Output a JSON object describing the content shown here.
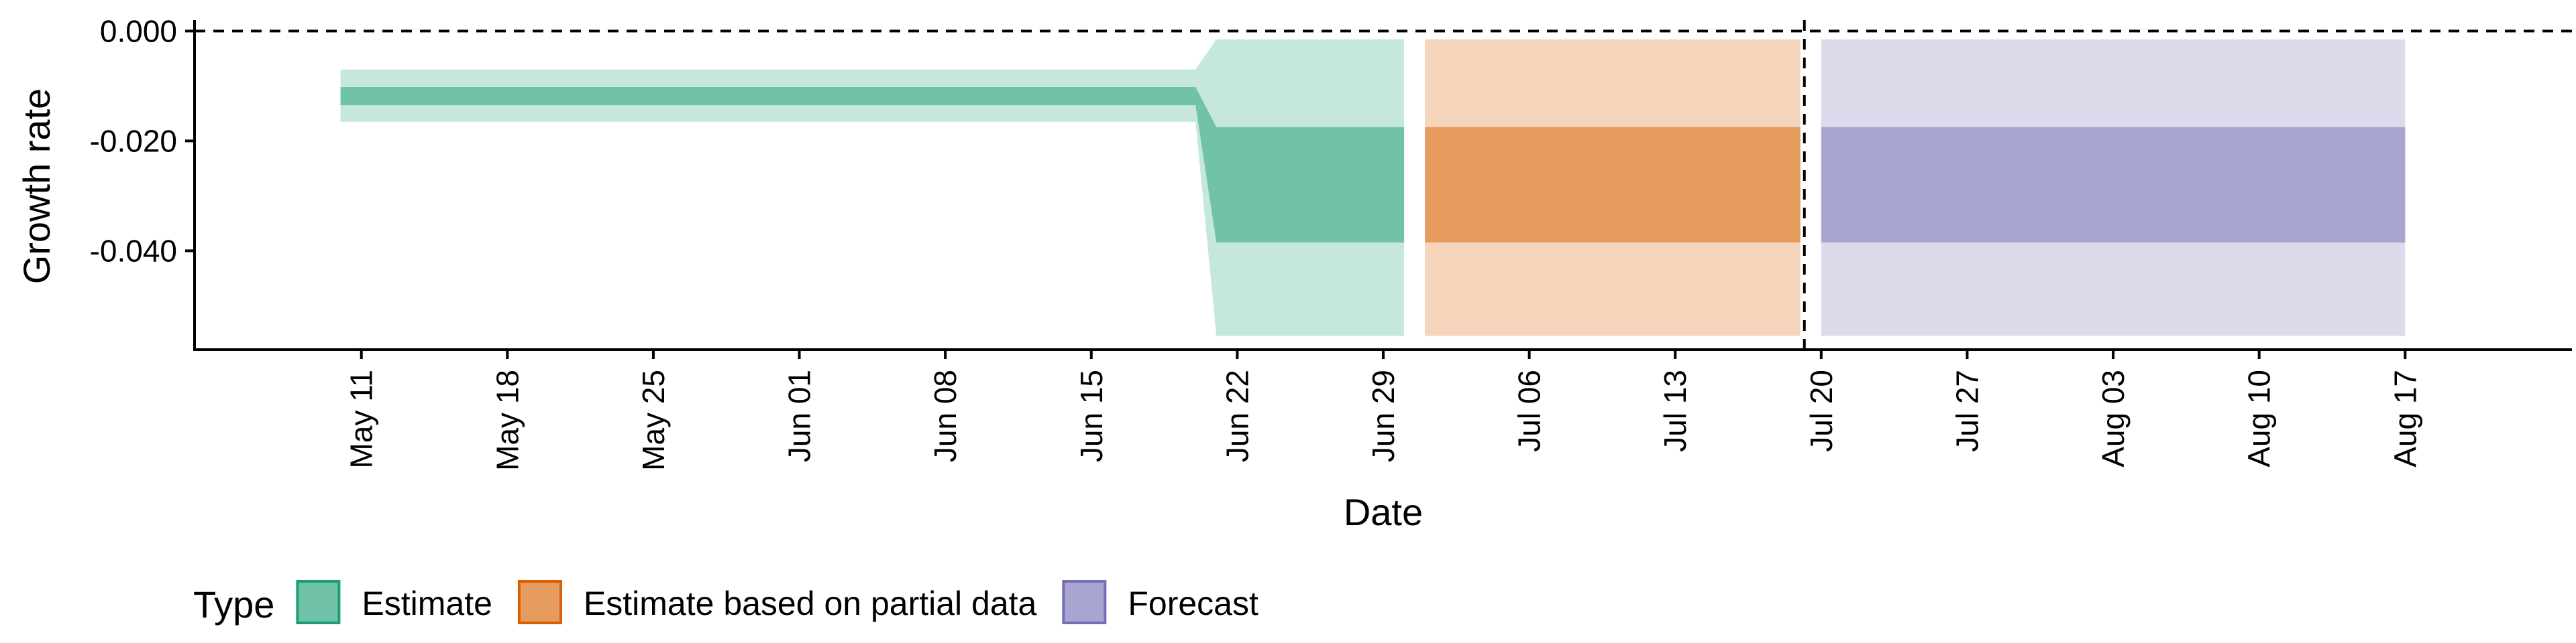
{
  "chart_data": {
    "type": "area",
    "xlabel": "Date",
    "ylabel": "Growth rate",
    "ylim": [
      -0.058,
      0.002
    ],
    "xlim": [
      "2020-05-03",
      "2020-08-25"
    ],
    "y_ticks": [
      {
        "value": 0.0,
        "label": "0.000"
      },
      {
        "value": -0.02,
        "label": "-0.020"
      },
      {
        "value": -0.04,
        "label": "-0.040"
      }
    ],
    "x_ticks": [
      {
        "date": "2020-05-11",
        "label": "May 11"
      },
      {
        "date": "2020-05-18",
        "label": "May 18"
      },
      {
        "date": "2020-05-25",
        "label": "May 25"
      },
      {
        "date": "2020-06-01",
        "label": "Jun 01"
      },
      {
        "date": "2020-06-08",
        "label": "Jun 08"
      },
      {
        "date": "2020-06-15",
        "label": "Jun 15"
      },
      {
        "date": "2020-06-22",
        "label": "Jun 22"
      },
      {
        "date": "2020-06-29",
        "label": "Jun 29"
      },
      {
        "date": "2020-07-06",
        "label": "Jul 06"
      },
      {
        "date": "2020-07-13",
        "label": "Jul 13"
      },
      {
        "date": "2020-07-20",
        "label": "Jul 20"
      },
      {
        "date": "2020-07-27",
        "label": "Jul 27"
      },
      {
        "date": "2020-08-03",
        "label": "Aug 03"
      },
      {
        "date": "2020-08-10",
        "label": "Aug 10"
      },
      {
        "date": "2020-08-17",
        "label": "Aug 17"
      }
    ],
    "reference_lines": [
      {
        "axis": "y",
        "value": 0.0,
        "style": "dashed"
      },
      {
        "axis": "x",
        "date": "2020-07-19",
        "style": "dashed"
      }
    ],
    "legend": {
      "title": "Type",
      "placement": "bottom-left",
      "entries": [
        {
          "label": "Estimate",
          "fill": "#70c2a9",
          "stroke": "#1b9e77"
        },
        {
          "label": "Estimate based on partial data",
          "fill": "#e69b5f",
          "stroke": "#d95f02"
        },
        {
          "label": "Forecast",
          "fill": "#a8a5d0",
          "stroke": "#7570b3"
        }
      ]
    },
    "series": [
      {
        "type": "Estimate",
        "color_outer": "#c5e7dc",
        "color_inner": "#70c2a9",
        "points": [
          {
            "date": "2020-05-10",
            "outer": [
              -0.0165,
              -0.007
            ],
            "inner": [
              -0.0135,
              -0.0102
            ]
          },
          {
            "date": "2020-06-20",
            "outer": [
              -0.0165,
              -0.007
            ],
            "inner": [
              -0.0135,
              -0.0102
            ]
          },
          {
            "date": "2020-06-21",
            "outer": [
              -0.0555,
              -0.0015
            ],
            "inner": [
              -0.0385,
              -0.0175
            ]
          },
          {
            "date": "2020-06-30",
            "outer": [
              -0.0555,
              -0.0015
            ],
            "inner": [
              -0.0385,
              -0.0175
            ]
          }
        ]
      },
      {
        "type": "Estimate based on partial data",
        "color_outer": "#f6d5bd",
        "color_inner": "#e69b5f",
        "points": [
          {
            "date": "2020-07-01",
            "outer": [
              -0.0555,
              -0.0015
            ],
            "inner": [
              -0.0385,
              -0.0175
            ]
          },
          {
            "date": "2020-07-19",
            "outer": [
              -0.0555,
              -0.0015
            ],
            "inner": [
              -0.0385,
              -0.0175
            ]
          }
        ]
      },
      {
        "type": "Forecast",
        "color_outer": "#dcdbec",
        "color_inner": "#a8a5d0",
        "points": [
          {
            "date": "2020-07-20",
            "outer": [
              -0.0555,
              -0.0015
            ],
            "inner": [
              -0.0385,
              -0.0175
            ]
          },
          {
            "date": "2020-08-17",
            "outer": [
              -0.0555,
              -0.0015
            ],
            "inner": [
              -0.0385,
              -0.0175
            ]
          }
        ]
      }
    ]
  }
}
